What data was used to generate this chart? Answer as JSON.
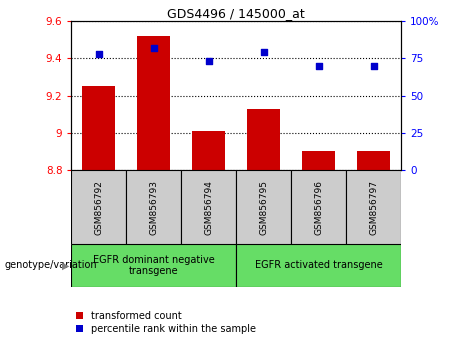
{
  "title": "GDS4496 / 145000_at",
  "samples": [
    "GSM856792",
    "GSM856793",
    "GSM856794",
    "GSM856795",
    "GSM856796",
    "GSM856797"
  ],
  "transformed_count": [
    9.25,
    9.52,
    9.01,
    9.13,
    8.9,
    8.9
  ],
  "percentile_rank": [
    78,
    82,
    73,
    79,
    70,
    70
  ],
  "bar_bottom": 8.8,
  "ylim_left": [
    8.8,
    9.6
  ],
  "ylim_right": [
    0,
    100
  ],
  "yticks_left": [
    8.8,
    9.0,
    9.2,
    9.4,
    9.6
  ],
  "yticks_right": [
    0,
    25,
    50,
    75,
    100
  ],
  "ytick_labels_left": [
    "8.8",
    "9",
    "9.2",
    "9.4",
    "9.6"
  ],
  "ytick_labels_right": [
    "0",
    "25",
    "50",
    "75",
    "100%"
  ],
  "bar_color": "#cc0000",
  "dot_color": "#0000cc",
  "grid_color": "#000000",
  "group1_label": "EGFR dominant negative\ntransgene",
  "group2_label": "EGFR activated transgene",
  "group1_indices": [
    0,
    1,
    2
  ],
  "group2_indices": [
    3,
    4,
    5
  ],
  "group_bg_color": "#66dd66",
  "sample_bg_color": "#cccccc",
  "legend_red_label": "transformed count",
  "legend_blue_label": "percentile rank within the sample",
  "genotype_label": "genotype/variation",
  "bar_width": 0.6
}
